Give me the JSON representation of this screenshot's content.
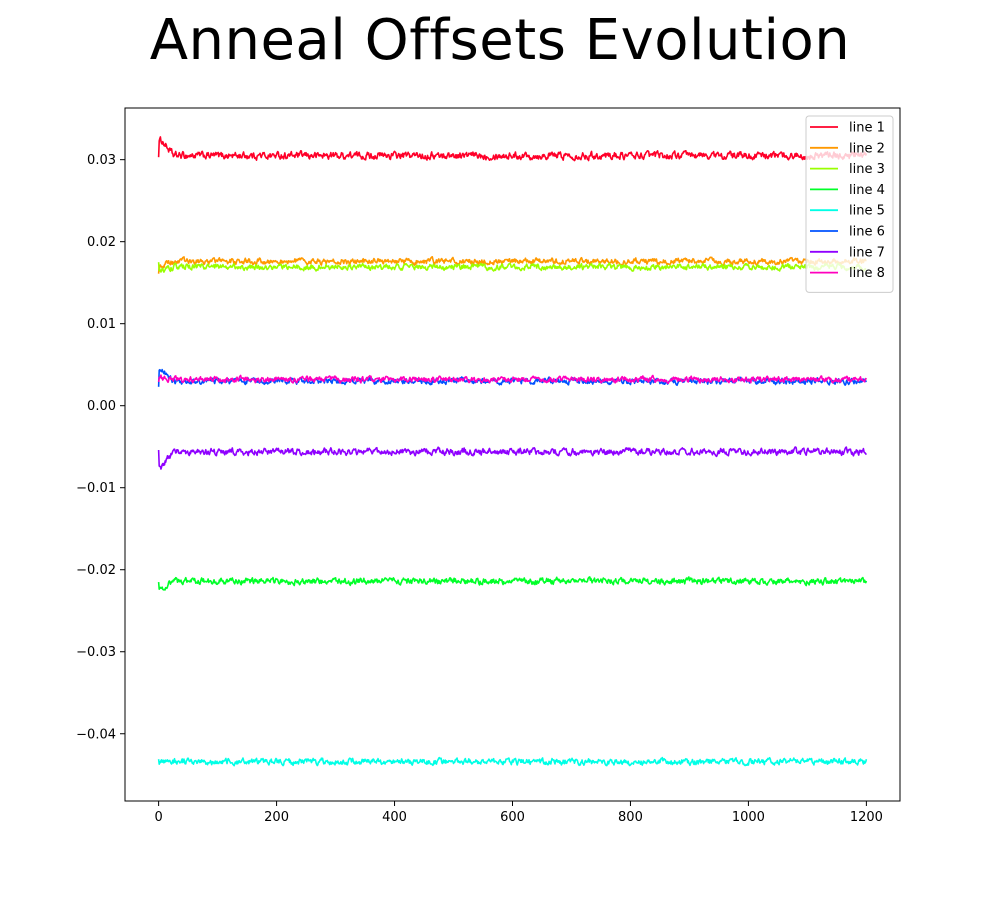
{
  "chart_data": {
    "type": "line",
    "title": "Anneal Offsets Evolution",
    "xlabel": "",
    "ylabel": "",
    "xlim": [
      -57,
      1257
    ],
    "ylim": [
      -0.0482,
      0.0363
    ],
    "xticks": [
      0,
      200,
      400,
      600,
      800,
      1000,
      1200
    ],
    "xtick_labels": [
      "0",
      "200",
      "400",
      "600",
      "800",
      "1000",
      "1200"
    ],
    "yticks": [
      0.03,
      0.02,
      0.01,
      0.0,
      -0.01,
      -0.02,
      -0.03,
      -0.04
    ],
    "ytick_labels": [
      "0.03",
      "0.02",
      "0.01",
      "0.00",
      "−0.01",
      "−0.02",
      "−0.03",
      "−0.04"
    ],
    "grid": false,
    "legend_position": "top-right",
    "x_range": [
      0,
      1200
    ],
    "series": [
      {
        "name": "line 1",
        "color": "#ff0029",
        "start": 0.0303,
        "peak": 0.0323,
        "level": 0.0305,
        "noise": 0.00035
      },
      {
        "name": "line 2",
        "color": "#ff9900",
        "start": 0.0161,
        "peak": 0.0171,
        "level": 0.0176,
        "noise": 0.00028
      },
      {
        "name": "line 3",
        "color": "#99ff00",
        "start": 0.0175,
        "peak": 0.0165,
        "level": 0.0169,
        "noise": 0.00028
      },
      {
        "name": "line 4",
        "color": "#00ff29",
        "start": -0.0215,
        "peak": -0.0223,
        "level": -0.0214,
        "noise": 0.0003
      },
      {
        "name": "line 5",
        "color": "#00ffe6",
        "start": -0.0431,
        "peak": -0.0436,
        "level": -0.0434,
        "noise": 0.0003
      },
      {
        "name": "line 6",
        "color": "#0052ff",
        "start": 0.0023,
        "peak": 0.0043,
        "level": 0.003,
        "noise": 0.00028
      },
      {
        "name": "line 7",
        "color": "#8f00ff",
        "start": -0.0054,
        "peak": -0.0074,
        "level": -0.0056,
        "noise": 0.00032
      },
      {
        "name": "line 8",
        "color": "#ff00bd",
        "start": 0.0029,
        "peak": 0.0034,
        "level": 0.0032,
        "noise": 0.00028
      }
    ]
  }
}
